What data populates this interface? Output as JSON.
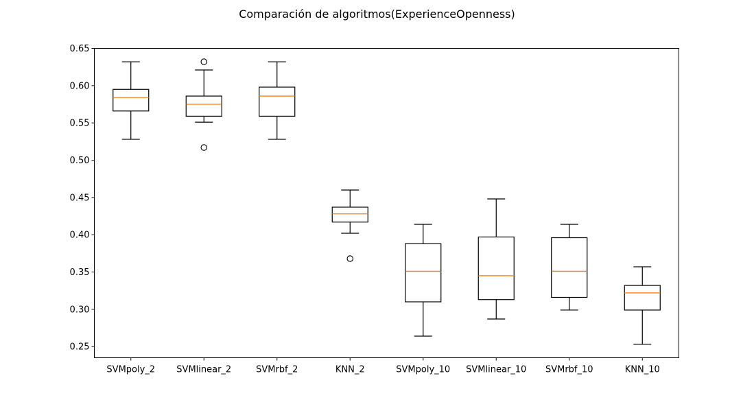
{
  "chart_data": {
    "type": "boxplot",
    "title": "Comparación de algoritmos(ExperienceOpenness)",
    "xlabel": "",
    "ylabel": "",
    "ylim": [
      0.235,
      0.65
    ],
    "yticks": [
      "0.25",
      "0.30",
      "0.35",
      "0.40",
      "0.45",
      "0.50",
      "0.55",
      "0.60",
      "0.65"
    ],
    "grid": false,
    "colors": {
      "box": "#000000",
      "median": "#ff7f0e",
      "flier": "#000000",
      "background": "#ffffff"
    },
    "categories": [
      "SVMpoly_2",
      "SVMlinear_2",
      "SVMrbf_2",
      "KNN_2",
      "SVMpoly_10",
      "SVMlinear_10",
      "SVMrbf_10",
      "KNN_10"
    ],
    "boxes": [
      {
        "label": "SVMpoly_2",
        "whislo": 0.528,
        "q1": 0.566,
        "med": 0.584,
        "q3": 0.595,
        "whishi": 0.632,
        "fliers": []
      },
      {
        "label": "SVMlinear_2",
        "whislo": 0.551,
        "q1": 0.559,
        "med": 0.575,
        "q3": 0.586,
        "whishi": 0.621,
        "fliers": [
          0.632,
          0.517
        ]
      },
      {
        "label": "SVMrbf_2",
        "whislo": 0.528,
        "q1": 0.559,
        "med": 0.586,
        "q3": 0.598,
        "whishi": 0.632,
        "fliers": []
      },
      {
        "label": "KNN_2",
        "whislo": 0.402,
        "q1": 0.417,
        "med": 0.428,
        "q3": 0.437,
        "whishi": 0.46,
        "fliers": [
          0.368
        ]
      },
      {
        "label": "SVMpoly_10",
        "whislo": 0.264,
        "q1": 0.31,
        "med": 0.351,
        "q3": 0.388,
        "whishi": 0.414,
        "fliers": []
      },
      {
        "label": "SVMlinear_10",
        "whislo": 0.287,
        "q1": 0.313,
        "med": 0.345,
        "q3": 0.397,
        "whishi": 0.448,
        "fliers": []
      },
      {
        "label": "SVMrbf_10",
        "whislo": 0.299,
        "q1": 0.316,
        "med": 0.351,
        "q3": 0.396,
        "whishi": 0.414,
        "fliers": []
      },
      {
        "label": "KNN_10",
        "whislo": 0.253,
        "q1": 0.299,
        "med": 0.322,
        "q3": 0.332,
        "whishi": 0.357,
        "fliers": []
      }
    ]
  }
}
